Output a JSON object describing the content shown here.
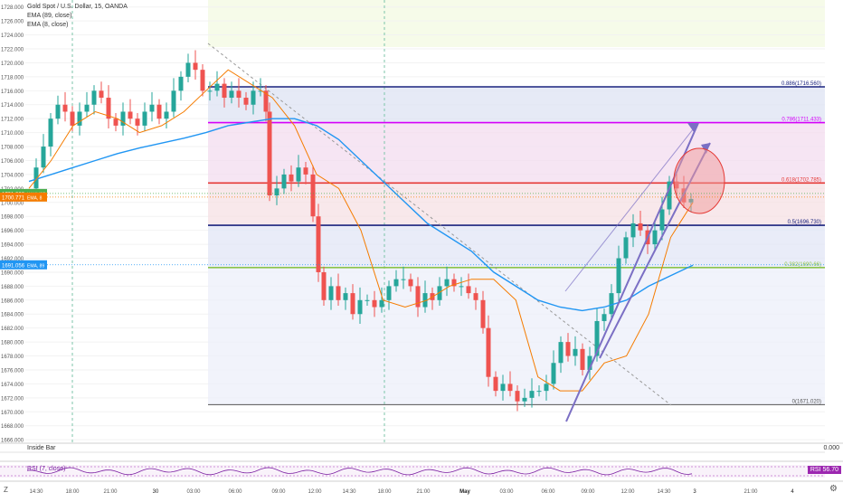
{
  "header": {
    "symbol_line": "Gold Spot / U.S. Dollar, 15, OANDA",
    "ema1": "EMA (89, close)",
    "ema2": "EMA (8, close)"
  },
  "price_axis": {
    "ticks": [
      "1728.000",
      "1726.000",
      "1724.000",
      "1722.000",
      "1720.000",
      "1718.000",
      "1716.000",
      "1714.000",
      "1712.000",
      "1710.000",
      "1708.000",
      "1706.000",
      "1704.000",
      "1702.000",
      "1700.000",
      "1698.000",
      "1696.000",
      "1694.000",
      "1692.000",
      "1690.000",
      "1688.000",
      "1686.000",
      "1684.000",
      "1682.000",
      "1680.000",
      "1678.000",
      "1676.000",
      "1674.000",
      "1672.000",
      "1670.000",
      "1668.000",
      "1666.000"
    ],
    "range": [
      1665.5,
      1729
    ]
  },
  "price_labels": [
    {
      "value": "1701.282",
      "tag": "XAUUSD",
      "price": 1701.28,
      "color": "#4caf50"
    },
    {
      "value": "1700.771",
      "tag": "EMA, 8",
      "price": 1700.77,
      "color": "#f57c00"
    },
    {
      "value": "1691.056",
      "tag": "EMA, 89",
      "price": 1691.06,
      "color": "#2196f3"
    }
  ],
  "time_axis": {
    "labels": [
      "14:30",
      "18:00",
      "21:00",
      "30",
      "03:00",
      "06:00",
      "09:00",
      "12:00",
      "14:30",
      "18:00",
      "21:00",
      "May",
      "03:00",
      "06:00",
      "09:00",
      "12:00",
      "14:30",
      "3",
      "21:00",
      "4"
    ]
  },
  "fib_levels": [
    {
      "label": "0.886(1716.560)",
      "price": 1716.56,
      "color": "#1a237e"
    },
    {
      "label": "0.786(1711.433)",
      "price": 1711.43,
      "color": "#d500f9"
    },
    {
      "label": "0.618(1702.785)",
      "price": 1702.785,
      "color": "#e53935"
    },
    {
      "label": "0.5(1696.730)",
      "price": 1696.73,
      "color": "#1a237e"
    },
    {
      "label": "0.382(1690.66)",
      "price": 1690.66,
      "color": "#8bc34a"
    },
    {
      "label": "0(1671.020)",
      "price": 1671.02,
      "color": "#555555"
    }
  ],
  "indicators": {
    "inside_bar_label": "Inside Bar",
    "inside_bar_value": "0.000",
    "rsi_label": "RSI (7, close)",
    "rsi_value": "RSI 56.70"
  },
  "bottom_controls": {
    "z_label": "Z",
    "settings_icon": "gear-icon"
  },
  "colors": {
    "up": "#26a69a",
    "down": "#ef5350",
    "ema89": "#2196f3",
    "ema8": "#f57c00",
    "channel": "#7b61c8",
    "circle": "#e57373"
  },
  "chart_data": {
    "type": "candlestick",
    "title": "Gold Spot / U.S. Dollar, 15, OANDA",
    "ylim": [
      1665.5,
      1729
    ],
    "series": [
      {
        "name": "EMA (89, close)",
        "values": [
          1703,
          1704,
          1705,
          1706,
          1707,
          1707.8,
          1708.5,
          1709.2,
          1710,
          1711,
          1711.5,
          1712,
          1712,
          1711,
          1709,
          1706,
          1703,
          1700,
          1697,
          1695,
          1693,
          1690,
          1688,
          1686,
          1685,
          1684.5,
          1685,
          1686,
          1688,
          1689.5,
          1691
        ]
      },
      {
        "name": "EMA (8, close)",
        "values": [
          1702,
          1706,
          1711,
          1713,
          1712,
          1710,
          1711,
          1713,
          1716,
          1719,
          1717,
          1715,
          1711,
          1704,
          1702,
          1696,
          1686,
          1685,
          1686,
          1688,
          1689,
          1689,
          1686,
          1675,
          1673,
          1673,
          1677,
          1678,
          1684,
          1695,
          1700
        ]
      }
    ]
  }
}
